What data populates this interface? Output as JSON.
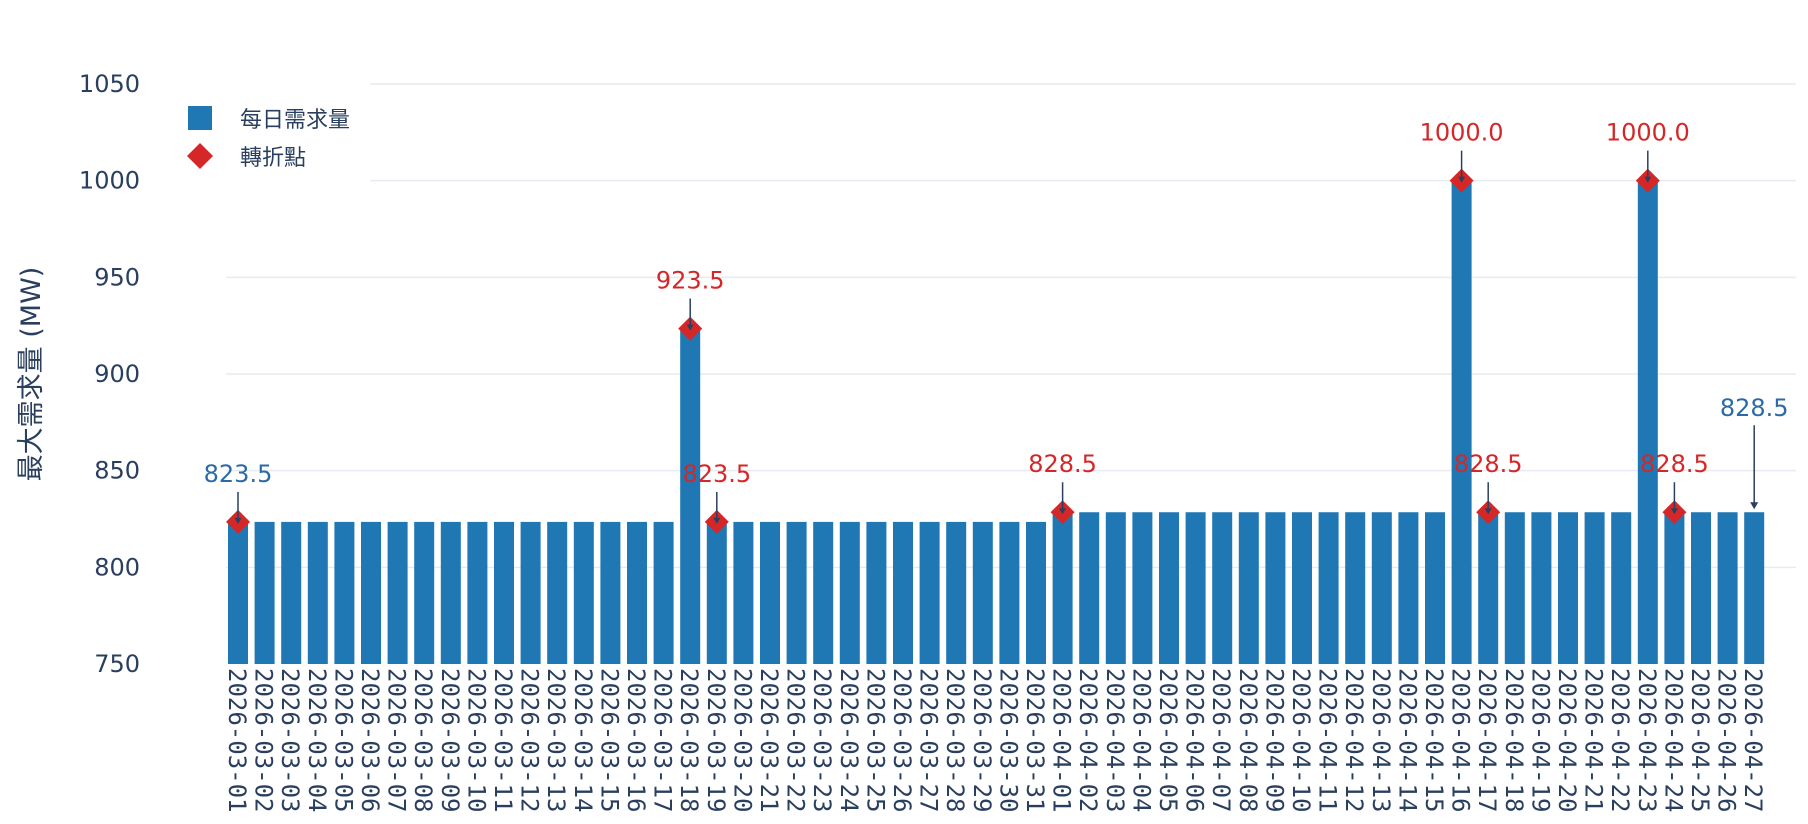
{
  "colors": {
    "bar": "#1f77b4",
    "marker": "#d62728",
    "text": "#2a3f5f",
    "grid": "#e6ebf1",
    "arrow": "#2a3f5f"
  },
  "legend": {
    "bar_label": "每日需求量",
    "marker_label": "轉折點"
  },
  "chart_data": {
    "type": "bar",
    "title": "",
    "xlabel": "",
    "ylabel": "最大需求量 (MW)",
    "ylim": [
      750,
      1050
    ],
    "yticks": [
      750,
      800,
      850,
      900,
      950,
      1000,
      1050
    ],
    "ytick_labels": [
      "750",
      "800",
      "850",
      "900",
      "950",
      "1000",
      "1050"
    ],
    "categories": [
      "2026-03-01",
      "2026-03-02",
      "2026-03-03",
      "2026-03-04",
      "2026-03-05",
      "2026-03-06",
      "2026-03-07",
      "2026-03-08",
      "2026-03-09",
      "2026-03-10",
      "2026-03-11",
      "2026-03-12",
      "2026-03-13",
      "2026-03-14",
      "2026-03-15",
      "2026-03-16",
      "2026-03-17",
      "2026-03-18",
      "2026-03-19",
      "2026-03-20",
      "2026-03-21",
      "2026-03-22",
      "2026-03-23",
      "2026-03-24",
      "2026-03-25",
      "2026-03-26",
      "2026-03-27",
      "2026-03-28",
      "2026-03-29",
      "2026-03-30",
      "2026-03-31",
      "2026-04-01",
      "2026-04-02",
      "2026-04-03",
      "2026-04-04",
      "2026-04-05",
      "2026-04-06",
      "2026-04-07",
      "2026-04-08",
      "2026-04-09",
      "2026-04-10",
      "2026-04-11",
      "2026-04-12",
      "2026-04-13",
      "2026-04-14",
      "2026-04-15",
      "2026-04-16",
      "2026-04-17",
      "2026-04-18",
      "2026-04-19",
      "2026-04-20",
      "2026-04-21",
      "2026-04-22",
      "2026-04-23",
      "2026-04-24",
      "2026-04-25",
      "2026-04-26",
      "2026-04-27"
    ],
    "series": [
      {
        "name": "每日需求量",
        "type": "bar",
        "values": [
          823.5,
          823.5,
          823.5,
          823.5,
          823.5,
          823.5,
          823.5,
          823.5,
          823.5,
          823.5,
          823.5,
          823.5,
          823.5,
          823.5,
          823.5,
          823.5,
          823.5,
          923.5,
          823.5,
          823.5,
          823.5,
          823.5,
          823.5,
          823.5,
          823.5,
          823.5,
          823.5,
          823.5,
          823.5,
          823.5,
          823.5,
          828.5,
          828.5,
          828.5,
          828.5,
          828.5,
          828.5,
          828.5,
          828.5,
          828.5,
          828.5,
          828.5,
          828.5,
          828.5,
          828.5,
          828.5,
          1000.0,
          828.5,
          828.5,
          828.5,
          828.5,
          828.5,
          828.5,
          1000.0,
          828.5,
          828.5,
          828.5,
          828.5
        ]
      },
      {
        "name": "轉折點",
        "type": "scatter",
        "points": [
          {
            "x": "2026-03-01",
            "y": 823.5
          },
          {
            "x": "2026-03-18",
            "y": 923.5
          },
          {
            "x": "2026-03-19",
            "y": 823.5
          },
          {
            "x": "2026-04-01",
            "y": 828.5
          },
          {
            "x": "2026-04-16",
            "y": 1000.0
          },
          {
            "x": "2026-04-17",
            "y": 828.5
          },
          {
            "x": "2026-04-23",
            "y": 1000.0
          },
          {
            "x": "2026-04-24",
            "y": 828.5
          }
        ]
      }
    ],
    "annotations": [
      {
        "x": "2026-03-01",
        "y": 823.5,
        "text": "823.5",
        "color": "#2b6aa8"
      },
      {
        "x": "2026-03-18",
        "y": 923.5,
        "text": "923.5",
        "color": "#d62728"
      },
      {
        "x": "2026-03-19",
        "y": 823.5,
        "text": "823.5",
        "color": "#d62728"
      },
      {
        "x": "2026-04-01",
        "y": 828.5,
        "text": "828.5",
        "color": "#d62728"
      },
      {
        "x": "2026-04-16",
        "y": 1000.0,
        "text": "1000.0",
        "color": "#d62728"
      },
      {
        "x": "2026-04-17",
        "y": 828.5,
        "text": "828.5",
        "color": "#d62728"
      },
      {
        "x": "2026-04-23",
        "y": 1000.0,
        "text": "1000.0",
        "color": "#d62728"
      },
      {
        "x": "2026-04-24",
        "y": 828.5,
        "text": "828.5",
        "color": "#d62728"
      },
      {
        "x": "2026-04-27",
        "y": 828.5,
        "text": "828.5",
        "color": "#2b6aa8",
        "arrowhead": true
      }
    ],
    "legend_position": "top-left"
  }
}
